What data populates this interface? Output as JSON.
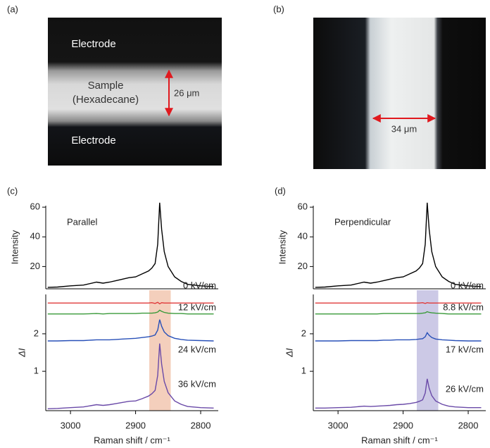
{
  "images": [
    {
      "label": "(a)",
      "top_text": "Electrode",
      "sample_line1": "Sample",
      "sample_line2": "(Hexadecane)",
      "bottom_text": "Electrode",
      "scale": "26 μm"
    },
    {
      "label": "(b)",
      "scale": "34 μm"
    }
  ],
  "chart_data": [
    {
      "type": "line",
      "label": "(c)",
      "annotation": "Parallel",
      "x": [
        3035,
        3020,
        3000,
        2980,
        2960,
        2950,
        2940,
        2930,
        2920,
        2910,
        2900,
        2890,
        2880,
        2875,
        2870,
        2866,
        2863,
        2860,
        2856,
        2850,
        2840,
        2830,
        2820,
        2800,
        2780
      ],
      "xlim": [
        3038,
        2773
      ],
      "xticks": [
        3000,
        2900,
        2800
      ],
      "xlabel": "Raman shift / cm⁻¹",
      "highlight": {
        "range": [
          2879,
          2846
        ],
        "color": "#f2c7b0"
      },
      "intensity": {
        "ylabel": "Intensity",
        "ylim": [
          5,
          61
        ],
        "yticks": [
          20,
          40,
          60
        ],
        "color": "#000000",
        "values": [
          6,
          6.2,
          7,
          7.5,
          9.5,
          8.8,
          9.5,
          10.5,
          11.5,
          12.5,
          13,
          15,
          17,
          19,
          22,
          35,
          63,
          45,
          30,
          20,
          13,
          10,
          8,
          7,
          6.5
        ]
      },
      "difference": {
        "ylabel": "ΔI",
        "ylim": [
          -0.05,
          3.05
        ],
        "yticks": [
          1,
          2
        ],
        "series": [
          {
            "name": "0 kV/cm",
            "color": "#e03a3a",
            "values": [
              2.82,
              2.82,
              2.82,
              2.82,
              2.82,
              2.82,
              2.82,
              2.82,
              2.82,
              2.82,
              2.82,
              2.82,
              2.82,
              2.83,
              2.81,
              2.84,
              2.8,
              2.83,
              2.82,
              2.82,
              2.82,
              2.82,
              2.82,
              2.82,
              2.82
            ]
          },
          {
            "name": "12 kV/cm",
            "color": "#3a9a3a",
            "values": [
              2.53,
              2.53,
              2.53,
              2.53,
              2.54,
              2.53,
              2.54,
              2.54,
              2.54,
              2.54,
              2.54,
              2.55,
              2.55,
              2.55,
              2.56,
              2.58,
              2.63,
              2.6,
              2.57,
              2.55,
              2.54,
              2.54,
              2.53,
              2.53,
              2.53
            ]
          },
          {
            "name": "24 kV/cm",
            "color": "#2850b8",
            "values": [
              1.81,
              1.81,
              1.82,
              1.82,
              1.84,
              1.84,
              1.84,
              1.85,
              1.86,
              1.87,
              1.88,
              1.9,
              1.92,
              1.94,
              1.97,
              2.1,
              2.38,
              2.2,
              2.05,
              1.95,
              1.88,
              1.85,
              1.83,
              1.82,
              1.81
            ]
          },
          {
            "name": "36 kV/cm",
            "color": "#6a4aa8",
            "values": [
              0,
              0.01,
              0.03,
              0.05,
              0.11,
              0.09,
              0.11,
              0.14,
              0.17,
              0.2,
              0.21,
              0.27,
              0.34,
              0.4,
              0.49,
              0.89,
              1.74,
              1.19,
              0.73,
              0.43,
              0.21,
              0.12,
              0.06,
              0.03,
              0.02
            ]
          }
        ]
      }
    },
    {
      "type": "line",
      "label": "(d)",
      "annotation": "Perpendicular",
      "x": [
        3035,
        3020,
        3000,
        2980,
        2960,
        2950,
        2940,
        2930,
        2920,
        2910,
        2900,
        2890,
        2880,
        2875,
        2870,
        2866,
        2863,
        2860,
        2856,
        2850,
        2840,
        2830,
        2820,
        2800,
        2780
      ],
      "xlim": [
        3038,
        2773
      ],
      "xticks": [
        3000,
        2900,
        2800
      ],
      "xlabel": "Raman shift / cm⁻¹",
      "highlight": {
        "range": [
          2879,
          2846
        ],
        "color": "#c3c0e2"
      },
      "intensity": {
        "ylabel": "Intensity",
        "ylim": [
          5,
          61
        ],
        "yticks": [
          20,
          40,
          60
        ],
        "color": "#000000",
        "values": [
          6,
          6.2,
          7,
          7.5,
          9.5,
          8.8,
          9.5,
          10.5,
          11.5,
          12.5,
          13,
          15,
          17,
          19,
          22,
          35,
          63,
          45,
          30,
          20,
          13,
          10,
          8,
          7,
          6.5
        ]
      },
      "difference": {
        "ylabel": "ΔI",
        "ylim": [
          -0.05,
          3.05
        ],
        "yticks": [
          1,
          2
        ],
        "series": [
          {
            "name": "0 kV/cm",
            "color": "#e03a3a",
            "values": [
              2.82,
              2.82,
              2.82,
              2.82,
              2.82,
              2.82,
              2.82,
              2.82,
              2.82,
              2.82,
              2.82,
              2.82,
              2.82,
              2.82,
              2.83,
              2.81,
              2.83,
              2.82,
              2.82,
              2.82,
              2.82,
              2.82,
              2.82,
              2.82,
              2.82
            ]
          },
          {
            "name": "8.8 kV/cm",
            "color": "#3a9a3a",
            "values": [
              2.53,
              2.53,
              2.53,
              2.53,
              2.53,
              2.53,
              2.53,
              2.54,
              2.54,
              2.54,
              2.54,
              2.54,
              2.54,
              2.54,
              2.55,
              2.56,
              2.59,
              2.57,
              2.56,
              2.55,
              2.54,
              2.53,
              2.53,
              2.53,
              2.53
            ]
          },
          {
            "name": "17 kV/cm",
            "color": "#2850b8",
            "values": [
              1.81,
              1.81,
              1.81,
              1.82,
              1.82,
              1.82,
              1.82,
              1.83,
              1.83,
              1.84,
              1.84,
              1.84,
              1.85,
              1.86,
              1.87,
              1.92,
              2.03,
              1.96,
              1.9,
              1.86,
              1.84,
              1.83,
              1.82,
              1.81,
              1.81
            ]
          },
          {
            "name": "26 kV/cm",
            "color": "#6a4aa8",
            "values": [
              0.02,
              0.02,
              0.03,
              0.04,
              0.07,
              0.06,
              0.07,
              0.08,
              0.09,
              0.11,
              0.12,
              0.14,
              0.17,
              0.2,
              0.24,
              0.42,
              0.8,
              0.55,
              0.35,
              0.21,
              0.12,
              0.07,
              0.05,
              0.03,
              0.03
            ]
          }
        ]
      }
    }
  ]
}
